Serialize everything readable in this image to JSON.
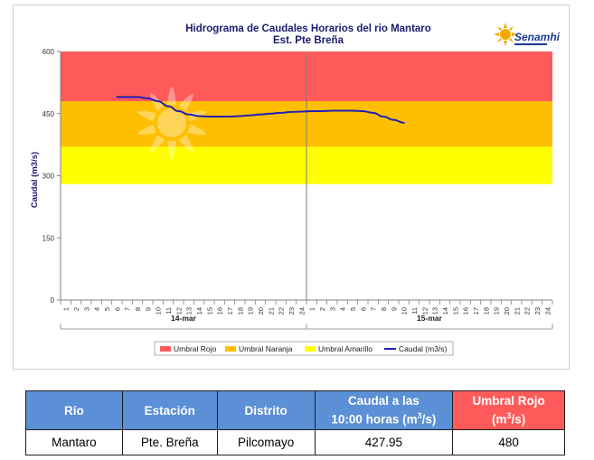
{
  "colors": {
    "rojo": "#ff5a5a",
    "naranja": "#ffbf00",
    "amarillo": "#ffff00",
    "caudal_line": "#1f1fb4",
    "table_header": "#5b8fd6",
    "table_header_red": "#ff5a5a"
  },
  "logo": {
    "text": "Senamhi",
    "icon": "sun-logo-icon"
  },
  "chart_data": {
    "type": "line",
    "title": "Hidrograma de Caudales Horarios del rio Mantaro",
    "subtitle": "Est. Pte Breña",
    "ylabel": "Caudal  (m3/s)",
    "xlabel": "",
    "ylim": [
      0,
      600
    ],
    "yticks": [
      "0",
      "150",
      "300",
      "450",
      "600"
    ],
    "hours": [
      "1",
      "2",
      "3",
      "4",
      "5",
      "6",
      "7",
      "8",
      "9",
      "10",
      "11",
      "12",
      "13",
      "14",
      "15",
      "16",
      "17",
      "18",
      "19",
      "20",
      "21",
      "22",
      "23",
      "24"
    ],
    "days": [
      "14-mar",
      "15-mar"
    ],
    "thresholds": [
      {
        "name": "Umbral Rojo",
        "from": 480,
        "to": 600,
        "color": "#ff5a5a"
      },
      {
        "name": "Umbral Naranja",
        "from": 370,
        "to": 480,
        "color": "#ffbf00"
      },
      {
        "name": "Umbral Amarillo",
        "from": 280,
        "to": 370,
        "color": "#ffff00"
      }
    ],
    "series": [
      {
        "name": "Caudal (m3/s)",
        "x": [
          6,
          7,
          8,
          9,
          10,
          11,
          12,
          13,
          14,
          15,
          16,
          17,
          18,
          19,
          20,
          21,
          22,
          23,
          24,
          25,
          26,
          27,
          28,
          29,
          30,
          31,
          32,
          33,
          34
        ],
        "values": [
          490,
          490,
          490,
          487,
          480,
          468,
          456,
          448,
          444,
          443,
          443,
          443,
          444,
          446,
          448,
          450,
          452,
          454,
          455,
          456,
          456,
          457,
          457,
          457,
          456,
          452,
          443,
          435,
          428
        ]
      }
    ],
    "legend_position": "bottom",
    "grid": false
  },
  "legend": {
    "rojo": "Umbral Rojo",
    "naranja": "Umbral Naranja",
    "amarillo": "Umbral Amarillo",
    "caudal": "Caudal (m3/s)"
  },
  "table": {
    "headers": {
      "rio": "Río",
      "estacion": "Estación",
      "distrito": "Distrito",
      "caudal_l1": "Caudal a las",
      "caudal_l2": "10:00 horas (m",
      "umbral_l1": "Umbral Rojo",
      "umbral_l2": "(m",
      "sup": "3",
      "unit_end": "/s)"
    },
    "row": {
      "rio": "Mantaro",
      "estacion": "Pte. Breña",
      "distrito": "Pilcomayo",
      "caudal": "427.95",
      "umbral": "480"
    }
  }
}
